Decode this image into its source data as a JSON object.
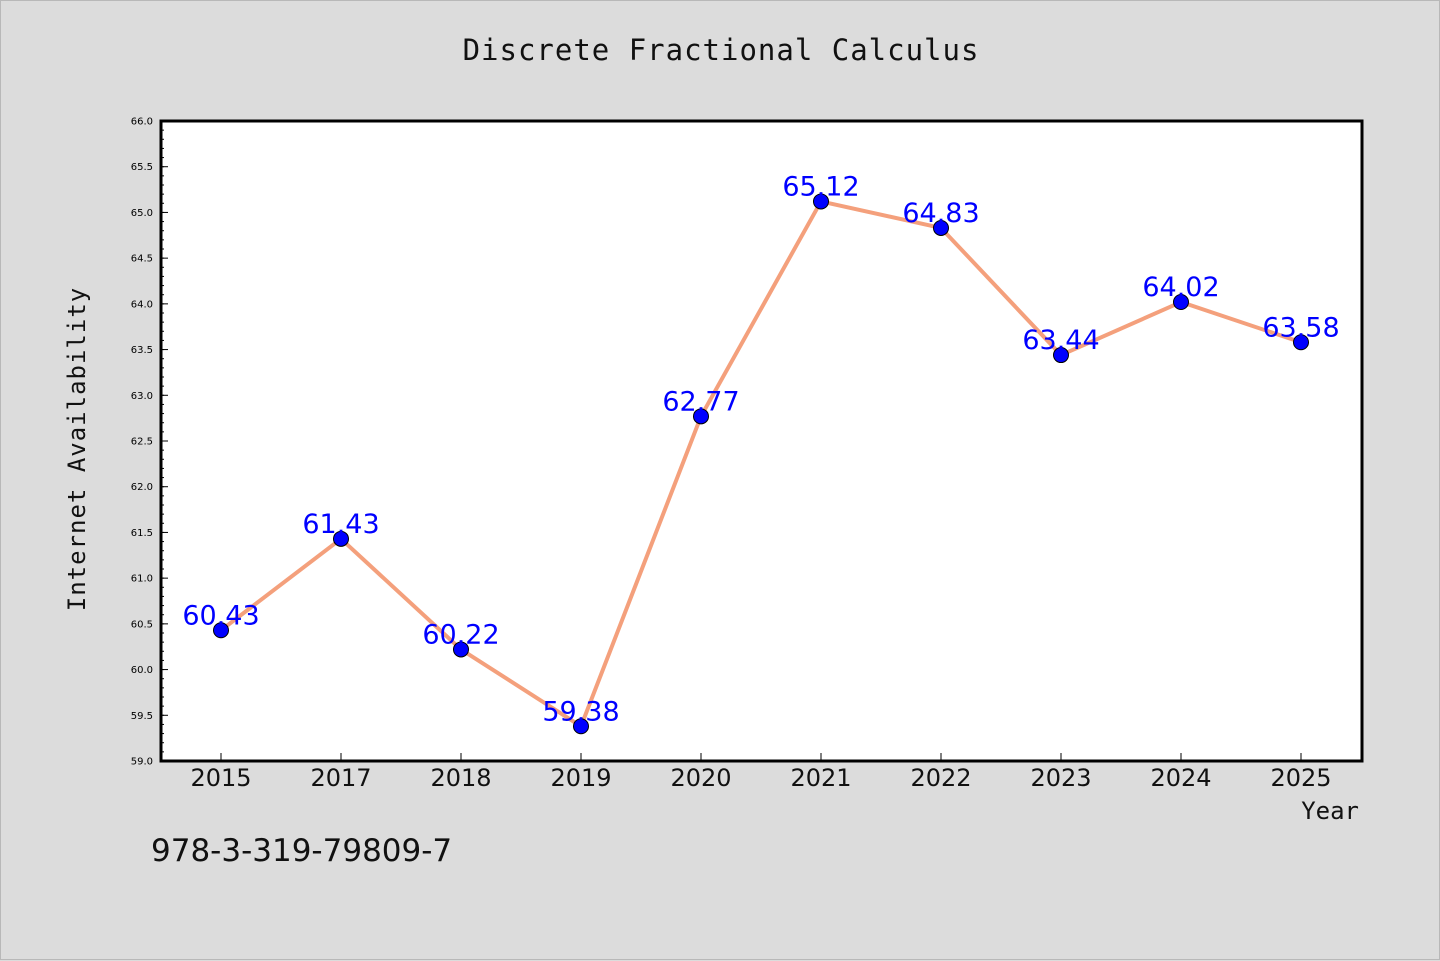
{
  "chart_data": {
    "type": "line",
    "title": "Discrete Fractional Calculus",
    "xlabel": "Year",
    "ylabel": "Internet Availability",
    "categories": [
      "2015",
      "2017",
      "2018",
      "2019",
      "2020",
      "2021",
      "2022",
      "2023",
      "2024",
      "2025"
    ],
    "series": [
      {
        "values": [
          60.43,
          61.43,
          60.22,
          59.38,
          62.77,
          65.12,
          64.83,
          63.44,
          64.02,
          63.58
        ]
      }
    ],
    "value_labels": [
      "60.43",
      "61.43",
      "60.22",
      "59.38",
      "62.77",
      "65.12",
      "64.83",
      "63.44",
      "64.02",
      "63.58"
    ],
    "ylim": [
      59.0,
      66.0
    ],
    "yticks": [
      "59.0",
      "59.5",
      "60.0",
      "60.5",
      "61.0",
      "61.5",
      "62.0",
      "62.5",
      "63.0",
      "63.5",
      "64.0",
      "64.5",
      "65.0",
      "65.5",
      "66.0"
    ],
    "grid": false,
    "colors": {
      "line": "#f4a07c",
      "marker": "#0000ff",
      "value_label": "#0000ff",
      "plot_background": "#ffffff",
      "figure_background": "#dcdcdc"
    }
  },
  "footer_text": "978-3-319-79809-7"
}
